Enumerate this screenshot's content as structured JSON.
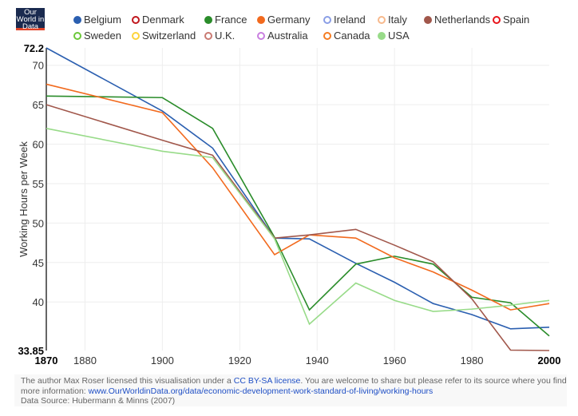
{
  "logo": {
    "text": "Our World in Data"
  },
  "legend": [
    {
      "name": "Belgium",
      "color": "#2b5fb0",
      "active": true
    },
    {
      "name": "Denmark",
      "color": "#c0161c",
      "active": false
    },
    {
      "name": "France",
      "color": "#2a8c2a",
      "active": true
    },
    {
      "name": "Germany",
      "color": "#f26a1e",
      "active": true
    },
    {
      "name": "Ireland",
      "color": "#8a9ee6",
      "active": false
    },
    {
      "name": "Italy",
      "color": "#f7b98c",
      "active": false
    },
    {
      "name": "Netherlands",
      "color": "#a1574b",
      "active": true
    },
    {
      "name": "Spain",
      "color": "#e8141b",
      "active": false
    },
    {
      "name": "Sweden",
      "color": "#6cc83a",
      "active": false
    },
    {
      "name": "Switzerland",
      "color": "#fdd33a",
      "active": false
    },
    {
      "name": "U.K.",
      "color": "#c97a72",
      "active": false
    },
    {
      "name": "Australia",
      "color": "#c97fe0",
      "active": false
    },
    {
      "name": "Canada",
      "color": "#f57c22",
      "active": false
    },
    {
      "name": "USA",
      "color": "#98db89",
      "active": true
    }
  ],
  "chart_data": {
    "type": "line",
    "ylabel": "Working Hours per Week",
    "xlim": [
      1870,
      2000
    ],
    "ylim": [
      33.85,
      72.2
    ],
    "xticks": [
      "1870",
      "1880",
      "1900",
      "1920",
      "1940",
      "1960",
      "1980",
      "2000"
    ],
    "yticks": [
      "72.2",
      "70",
      "65",
      "60",
      "55",
      "50",
      "45",
      "40",
      "33.85"
    ],
    "grid": true,
    "x": [
      1870,
      1900,
      1913,
      1929,
      1938,
      1950,
      1960,
      1970,
      1980,
      1990,
      2000
    ],
    "series": [
      {
        "name": "Belgium",
        "color": "#2b5fb0",
        "values": [
          72.2,
          64.2,
          59.5,
          48.1,
          48.0,
          44.9,
          42.5,
          39.8,
          38.4,
          36.6,
          36.8
        ]
      },
      {
        "name": "France",
        "color": "#2a8c2a",
        "values": [
          66.1,
          65.9,
          62.0,
          48.2,
          39.0,
          44.8,
          45.8,
          44.8,
          40.6,
          39.9,
          35.7
        ]
      },
      {
        "name": "Germany",
        "color": "#f26a1e",
        "values": [
          67.6,
          64.0,
          57.0,
          46.0,
          48.5,
          48.1,
          45.6,
          43.8,
          41.5,
          39.0,
          39.8
        ]
      },
      {
        "name": "Netherlands",
        "color": "#a1574b",
        "values": [
          65.0,
          60.5,
          58.6,
          48.1,
          48.5,
          49.2,
          47.2,
          45.1,
          40.4,
          33.9,
          33.85
        ]
      },
      {
        "name": "USA",
        "color": "#98db89",
        "values": [
          62.0,
          59.1,
          58.3,
          48.0,
          37.2,
          42.4,
          40.2,
          38.8,
          39.1,
          39.6,
          40.2
        ]
      }
    ]
  },
  "footer": {
    "text1": "The author Max Roser licensed this visualisation under a ",
    "license_link": "CC BY-SA license",
    "text2": ". You are welcome to share but please refer to its source where you find more information: ",
    "url_link": "www.OurWorldinData.org/data/economic-development-work-standard-of-living/working-hours",
    "source": "Data Source: Hubermann & Minns (2007)"
  }
}
